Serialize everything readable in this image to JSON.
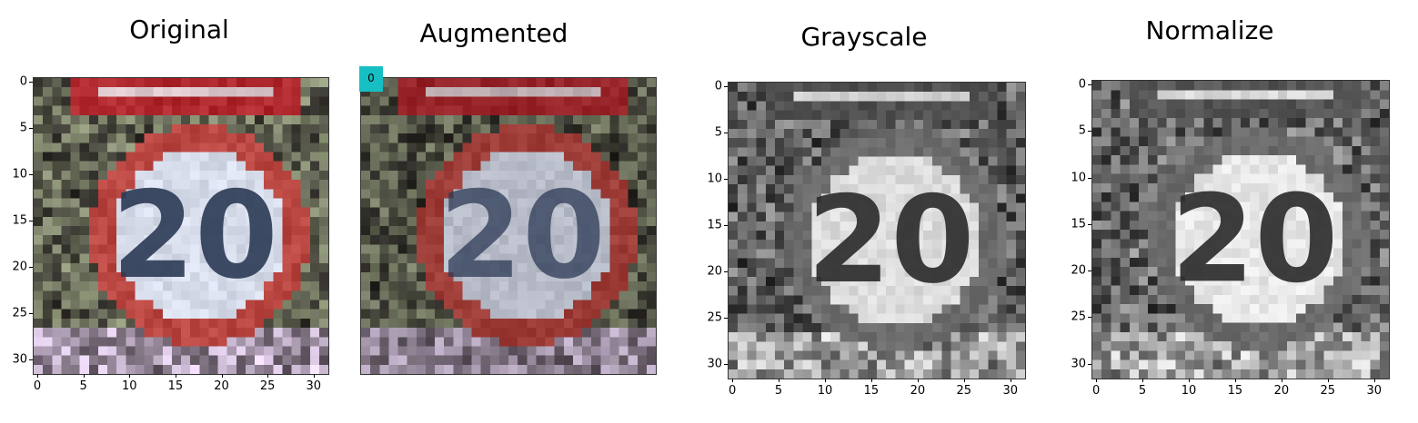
{
  "panels": [
    {
      "title": "Original",
      "mode": "color",
      "show_axes": true
    },
    {
      "title": "Augmented",
      "mode": "color",
      "show_axes": false,
      "badge": "0"
    },
    {
      "title": "Grayscale",
      "mode": "gray",
      "show_axes": true
    },
    {
      "title": "Normalize",
      "mode": "gray",
      "show_axes": true
    }
  ],
  "axis_ticks": [
    "0",
    "5",
    "10",
    "15",
    "20",
    "25",
    "30"
  ],
  "sign_text": "20",
  "colors": {
    "sign_red": "#b52a2a",
    "badge": "#17bfc4"
  }
}
